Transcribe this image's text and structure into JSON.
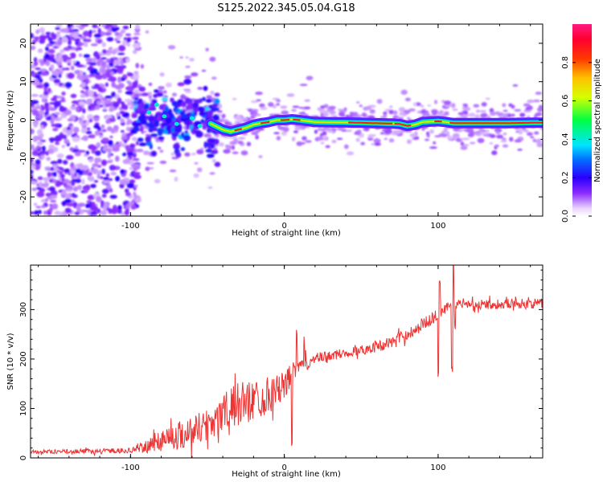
{
  "figure_title": "S125.2022.345.05.04.G18",
  "chart_data": [
    {
      "type": "heatmap",
      "title": "",
      "xlabel": "Height of straight line (km)",
      "ylabel": "Frequency (Hz)",
      "xlim": [
        -165,
        168
      ],
      "ylim": [
        -25,
        25
      ],
      "xticks": [
        -100,
        0,
        100
      ],
      "yticks": [
        -20,
        -10,
        0,
        10,
        20
      ],
      "grid": false,
      "colorbar": {
        "label": "Normalized spectral amplitude",
        "range": [
          0,
          1
        ],
        "ticks": [
          0.0,
          0.2,
          0.4,
          0.6,
          0.8
        ],
        "colormap": "rainbow (white-purple-blue-cyan-green-yellow-orange-red-magenta)"
      },
      "ridge": {
        "x": [
          -100,
          -90,
          -80,
          -70,
          -60,
          -50,
          -45,
          -40,
          -35,
          -30,
          -25,
          -20,
          -15,
          -10,
          -5,
          0,
          5,
          10,
          20,
          40,
          60,
          70,
          75,
          80,
          85,
          90,
          95,
          100,
          105,
          110,
          120,
          140,
          160,
          168
        ],
        "y": [
          2.5,
          1.5,
          0.5,
          -0.5,
          0.5,
          -0.5,
          -1.5,
          -2.5,
          -3.0,
          -2.5,
          -2.0,
          -1.2,
          -0.8,
          -0.5,
          0.0,
          0.0,
          0.2,
          0.0,
          -0.5,
          -0.6,
          -0.8,
          -0.9,
          -1.0,
          -1.5,
          -1.2,
          -0.5,
          -0.4,
          -0.3,
          -0.5,
          -0.8,
          -0.8,
          -0.8,
          -0.7,
          -0.7
        ]
      },
      "noise_region": {
        "x_range": [
          -165,
          -95
        ],
        "y_range": [
          -25,
          25
        ]
      }
    },
    {
      "type": "line",
      "title": "",
      "xlabel": "Height of straight line (km)",
      "ylabel": "SNR (10 * v/v)",
      "xlim": [
        -165,
        168
      ],
      "ylim": [
        0,
        390
      ],
      "xticks": [
        -100,
        0,
        100
      ],
      "yticks": [
        0,
        100,
        200,
        300
      ],
      "grid": false,
      "series": [
        {
          "color": "#ee3333",
          "x": [
            -165,
            -140,
            -120,
            -100,
            -90,
            -80,
            -70,
            -60,
            -50,
            -40,
            -30,
            -20,
            -10,
            0,
            5,
            10,
            20,
            30,
            40,
            50,
            60,
            70,
            80,
            90,
            95,
            100,
            105,
            110,
            120,
            130,
            140,
            150,
            160,
            168
          ],
          "y": [
            12,
            13,
            14,
            15,
            22,
            38,
            45,
            55,
            68,
            90,
            108,
            118,
            128,
            145,
            170,
            185,
            200,
            207,
            212,
            218,
            225,
            235,
            250,
            270,
            280,
            290,
            302,
            310,
            312,
            310,
            312,
            313,
            312,
            312
          ],
          "noise": [
            4,
            4,
            5,
            5,
            12,
            25,
            28,
            32,
            35,
            40,
            45,
            42,
            38,
            28,
            25,
            18,
            12,
            10,
            10,
            10,
            11,
            12,
            12,
            12,
            12,
            12,
            11,
            10,
            10,
            10,
            10,
            10,
            10,
            10
          ]
        }
      ]
    }
  ]
}
